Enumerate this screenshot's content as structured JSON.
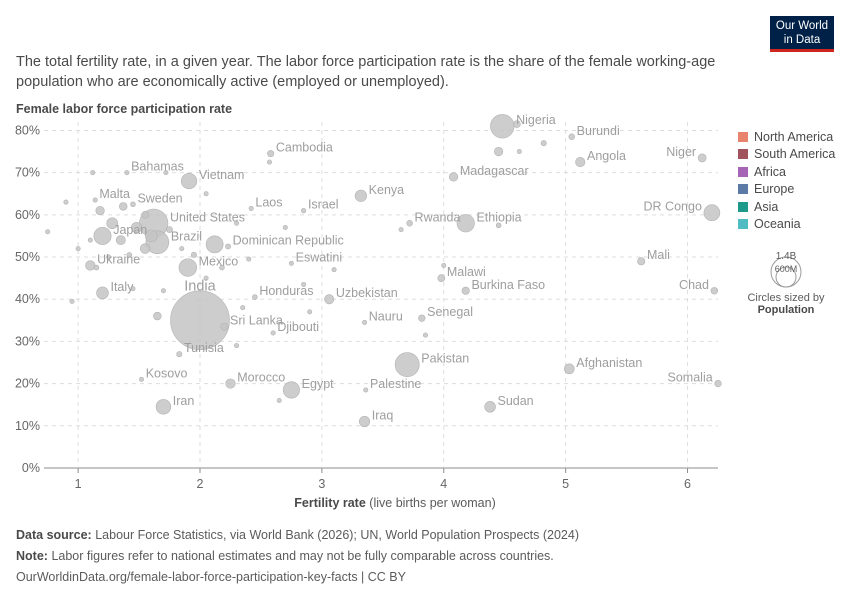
{
  "header": {
    "logo_line1": "Our World",
    "logo_line2": "in Data",
    "subtitle": "The total fertility rate, in a given year. The labor force participation rate is the share of the female working-age population who are economically active (employed or unemployed)."
  },
  "legend": {
    "items": [
      {
        "label": "North America",
        "color": "#e8836e"
      },
      {
        "label": "South America",
        "color": "#a0525d"
      },
      {
        "label": "Africa",
        "color": "#a564b5"
      },
      {
        "label": "Europe",
        "color": "#5b7ba6"
      },
      {
        "label": "Asia",
        "color": "#1e9a8a"
      },
      {
        "label": "Oceania",
        "color": "#4fbcc3"
      }
    ],
    "size_big": "1.4B",
    "size_small": "600M",
    "size_caption": "Circles sized by",
    "size_var": "Population"
  },
  "footer": {
    "source_label": "Data source:",
    "source_text": "Labour Force Statistics, via World Bank (2026); UN, World Population Prospects (2024)",
    "note_label": "Note:",
    "note_text": "Labor figures refer to national estimates and may not be fully comparable across countries.",
    "url": "OurWorldinData.org/female-labor-force-participation-key-facts | CC BY"
  },
  "chart_data": {
    "type": "scatter",
    "ylabel": "Female labor force participation rate",
    "xlabel_bold": "Fertility rate",
    "xlabel_rest": "(live births per woman)",
    "xlim": [
      0.72,
      6.25
    ],
    "ylim": [
      0,
      82
    ],
    "xticks": [
      1,
      2,
      3,
      4,
      5,
      6
    ],
    "yticks": [
      0,
      10,
      20,
      30,
      40,
      50,
      60,
      70,
      80
    ],
    "ytick_suffix": "%",
    "grid": true,
    "point_color": "#c4c4c4",
    "label_color": "#9e9e9e",
    "labeled_points": [
      {
        "name": "Nigeria",
        "x": 4.48,
        "y": 81,
        "pop": 230
      },
      {
        "name": "Burundi",
        "x": 5.05,
        "y": 78.5,
        "pop": 14
      },
      {
        "name": "Bahamas",
        "x": 1.4,
        "y": 70.0,
        "pop": 0.4
      },
      {
        "name": "Cambodia",
        "x": 2.58,
        "y": 74.5,
        "pop": 17
      },
      {
        "name": "Angola",
        "x": 5.12,
        "y": 72.5,
        "pop": 37
      },
      {
        "name": "Niger",
        "x": 6.12,
        "y": 73.5,
        "pop": 27
      },
      {
        "name": "Vietnam",
        "x": 1.91,
        "y": 68,
        "pop": 100
      },
      {
        "name": "Madagascar",
        "x": 4.08,
        "y": 69,
        "pop": 31
      },
      {
        "name": "Malta",
        "x": 1.14,
        "y": 63.5,
        "pop": 0.5
      },
      {
        "name": "Sweden",
        "x": 1.45,
        "y": 62.5,
        "pop": 10
      },
      {
        "name": "Kenya",
        "x": 3.32,
        "y": 64.5,
        "pop": 55
      },
      {
        "name": "Laos",
        "x": 2.42,
        "y": 61.5,
        "pop": 7
      },
      {
        "name": "Israel",
        "x": 2.85,
        "y": 61,
        "pop": 9
      },
      {
        "name": "DR Congo",
        "x": 6.2,
        "y": 60.5,
        "pop": 105
      },
      {
        "name": "United States",
        "x": 1.62,
        "y": 58.0,
        "pop": 335
      },
      {
        "name": "Rwanda",
        "x": 3.72,
        "y": 58.0,
        "pop": 14
      },
      {
        "name": "Ethiopia",
        "x": 4.18,
        "y": 58.0,
        "pop": 126
      },
      {
        "name": "Japan",
        "x": 1.2,
        "y": 55.0,
        "pop": 124
      },
      {
        "name": "Brazil",
        "x": 1.65,
        "y": 53.5,
        "pop": 216
      },
      {
        "name": "Dominican Republic",
        "x": 2.23,
        "y": 52.5,
        "pop": 11
      },
      {
        "name": "Mali",
        "x": 5.62,
        "y": 49.0,
        "pop": 23
      },
      {
        "name": "Eswatini",
        "x": 2.75,
        "y": 48.5,
        "pop": 1.2
      },
      {
        "name": "Ukraine",
        "x": 1.1,
        "y": 48.0,
        "pop": 38
      },
      {
        "name": "Mexico",
        "x": 1.9,
        "y": 47.5,
        "pop": 128
      },
      {
        "name": "Malawi",
        "x": 3.98,
        "y": 45.0,
        "pop": 21
      },
      {
        "name": "Chad",
        "x": 6.22,
        "y": 42.0,
        "pop": 19
      },
      {
        "name": "Burkina Faso",
        "x": 4.18,
        "y": 42.0,
        "pop": 23
      },
      {
        "name": "Italy",
        "x": 1.2,
        "y": 41.5,
        "pop": 59
      },
      {
        "name": "Honduras",
        "x": 2.45,
        "y": 40.5,
        "pop": 10
      },
      {
        "name": "Uzbekistan",
        "x": 3.06,
        "y": 40.0,
        "pop": 36
      },
      {
        "name": "India",
        "x": 2.0,
        "y": 35.0,
        "pop": 1430
      },
      {
        "name": "Senegal",
        "x": 3.82,
        "y": 35.5,
        "pop": 18
      },
      {
        "name": "Nauru",
        "x": 3.35,
        "y": 34.5,
        "pop": 0.01
      },
      {
        "name": "Sri Lanka",
        "x": 2.2,
        "y": 33.5,
        "pop": 22
      },
      {
        "name": "Djibouti",
        "x": 2.6,
        "y": 32.0,
        "pop": 1.1
      },
      {
        "name": "Tunisia",
        "x": 1.83,
        "y": 27.0,
        "pop": 12
      },
      {
        "name": "Pakistan",
        "x": 3.7,
        "y": 24.5,
        "pop": 240
      },
      {
        "name": "Afghanistan",
        "x": 5.03,
        "y": 23.5,
        "pop": 41
      },
      {
        "name": "Somalia",
        "x": 6.25,
        "y": 20.0,
        "pop": 18
      },
      {
        "name": "Kosovo",
        "x": 1.52,
        "y": 21.0,
        "pop": 1.6
      },
      {
        "name": "Morocco",
        "x": 2.25,
        "y": 20.0,
        "pop": 37
      },
      {
        "name": "Egypt",
        "x": 2.75,
        "y": 18.5,
        "pop": 112
      },
      {
        "name": "Palestine",
        "x": 3.36,
        "y": 18.5,
        "pop": 5
      },
      {
        "name": "Iran",
        "x": 1.7,
        "y": 14.5,
        "pop": 89
      },
      {
        "name": "Sudan",
        "x": 4.38,
        "y": 14.5,
        "pop": 48
      },
      {
        "name": "Iraq",
        "x": 3.35,
        "y": 11.0,
        "pop": 45
      }
    ],
    "other_points": [
      {
        "x": 4.45,
        "y": 75.0,
        "pop": 30
      },
      {
        "x": 4.62,
        "y": 75.0,
        "pop": 8
      },
      {
        "x": 4.6,
        "y": 81.5,
        "pop": 20
      },
      {
        "x": 4.82,
        "y": 77.0,
        "pop": 12
      },
      {
        "x": 2.57,
        "y": 72.5,
        "pop": 5
      },
      {
        "x": 2.05,
        "y": 65.0,
        "pop": 4
      },
      {
        "x": 1.72,
        "y": 70.0,
        "pop": 3
      },
      {
        "x": 1.12,
        "y": 70.0,
        "pop": 4
      },
      {
        "x": 1.18,
        "y": 61.0,
        "pop": 30
      },
      {
        "x": 1.37,
        "y": 62.0,
        "pop": 25
      },
      {
        "x": 1.55,
        "y": 60.0,
        "pop": 20
      },
      {
        "x": 1.28,
        "y": 58.0,
        "pop": 50
      },
      {
        "x": 1.48,
        "y": 57.0,
        "pop": 45
      },
      {
        "x": 1.6,
        "y": 55.0,
        "pop": 60
      },
      {
        "x": 1.75,
        "y": 56.5,
        "pop": 15
      },
      {
        "x": 1.35,
        "y": 54.0,
        "pop": 35
      },
      {
        "x": 1.55,
        "y": 52.0,
        "pop": 40
      },
      {
        "x": 1.42,
        "y": 50.5,
        "pop": 10
      },
      {
        "x": 1.85,
        "y": 52.0,
        "pop": 8
      },
      {
        "x": 0.9,
        "y": 63.0,
        "pop": 2
      },
      {
        "x": 0.75,
        "y": 56.0,
        "pop": 3
      },
      {
        "x": 1.1,
        "y": 54.0,
        "pop": 6
      },
      {
        "x": 1.25,
        "y": 50.0,
        "pop": 8
      },
      {
        "x": 1.0,
        "y": 52.0,
        "pop": 2
      },
      {
        "x": 1.15,
        "y": 47.5,
        "pop": 10
      },
      {
        "x": 2.12,
        "y": 53.0,
        "pop": 120
      },
      {
        "x": 2.18,
        "y": 47.5,
        "pop": 10
      },
      {
        "x": 2.3,
        "y": 58.0,
        "pop": 6
      },
      {
        "x": 2.7,
        "y": 57.0,
        "pop": 3
      },
      {
        "x": 2.4,
        "y": 49.5,
        "pop": 2
      },
      {
        "x": 1.65,
        "y": 36.0,
        "pop": 25
      },
      {
        "x": 1.7,
        "y": 42.0,
        "pop": 4
      },
      {
        "x": 2.9,
        "y": 37.0,
        "pop": 3
      },
      {
        "x": 3.1,
        "y": 47.0,
        "pop": 2
      },
      {
        "x": 3.65,
        "y": 56.5,
        "pop": 8
      },
      {
        "x": 4.45,
        "y": 57.5,
        "pop": 10
      },
      {
        "x": 4.0,
        "y": 48.0,
        "pop": 2
      },
      {
        "x": 3.85,
        "y": 31.5,
        "pop": 2
      },
      {
        "x": 2.35,
        "y": 38.0,
        "pop": 5
      },
      {
        "x": 2.85,
        "y": 43.5,
        "pop": 4
      },
      {
        "x": 2.65,
        "y": 16.0,
        "pop": 3
      },
      {
        "x": 2.3,
        "y": 29.0,
        "pop": 3
      },
      {
        "x": 0.95,
        "y": 39.5,
        "pop": 1.5
      },
      {
        "x": 1.45,
        "y": 42.5,
        "pop": 3
      },
      {
        "x": 2.05,
        "y": 45.0,
        "pop": 5
      },
      {
        "x": 1.95,
        "y": 50.5,
        "pop": 12
      }
    ]
  }
}
